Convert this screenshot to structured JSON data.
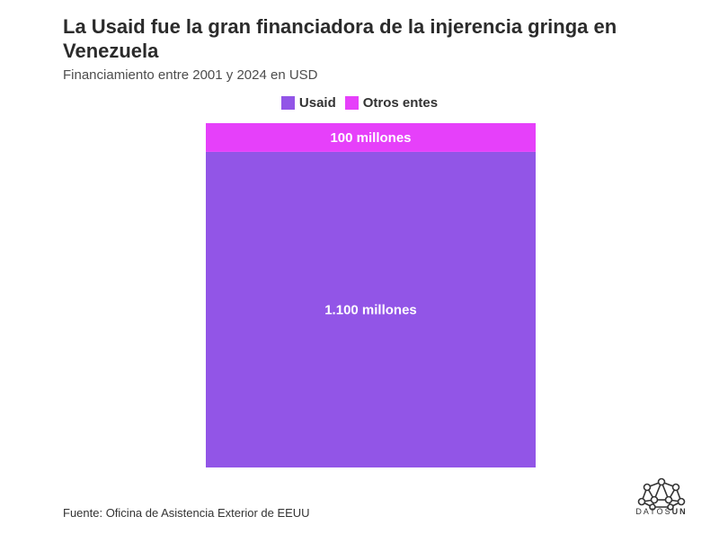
{
  "title": "La Usaid fue la gran financiadora de la injerencia gringa en Venezuela",
  "subtitle": "Financiamiento entre 2001 y 2024 en USD",
  "source": "Fuente: Oficina de Asistencia Exterior de EEUU",
  "logo": {
    "prefix": "DATOS",
    "suffix": "UN",
    "icon": "network-nodes-icon"
  },
  "colors": {
    "usaid": "#9255e7",
    "otros": "#e640fa"
  },
  "chart_data": {
    "type": "bar",
    "stacked": true,
    "categories": [
      ""
    ],
    "series": [
      {
        "name": "Usaid",
        "values": [
          1100
        ],
        "label": "1.100 millones",
        "color": "#9255e7"
      },
      {
        "name": "Otros entes",
        "values": [
          100
        ],
        "label": "100 millones",
        "color": "#e640fa"
      }
    ],
    "title": "La Usaid fue la gran financiadora de la injerencia gringa en Venezuela",
    "subtitle": "Financiamiento entre 2001 y 2024 en USD",
    "legend": "top-center",
    "grid": false,
    "ylim": [
      0,
      1200
    ]
  }
}
